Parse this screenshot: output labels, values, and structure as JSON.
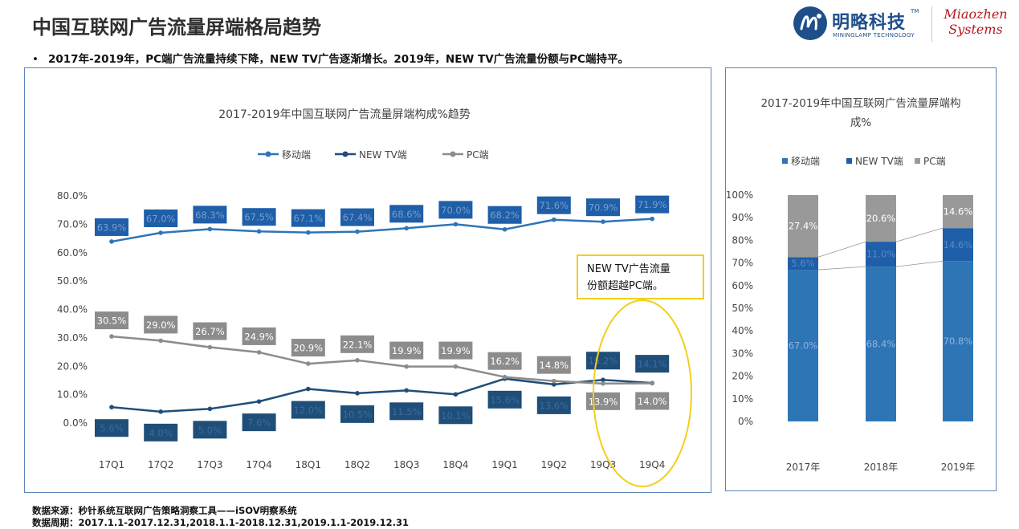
{
  "page": {
    "title": "中国互联网广告流量屏端格局趋势",
    "bullet": "2017年-2019年，PC端广告流量持续下降，NEW TV广告逐渐增长。2019年，NEW TV广告流量份额与PC端持平。",
    "source_line": "数据来源：秒针系统互联网广告策略洞察工具——iSOV明察系统",
    "period_line": "数据周期：2017.1.1-2017.12.31,2018.1.1-2018.12.31,2019.1.1-2019.12.31"
  },
  "logo": {
    "name": "明略科技",
    "tm": "TM",
    "sub": "MININGLAMP TECHNOLOGY",
    "partner_line1": "Miaozhen",
    "partner_line2": "Systems"
  },
  "colors": {
    "mobile": "#2e75b6",
    "newtv": "#1f4e79",
    "pc": "#8c8c8c",
    "stack_mobile": "#2e75b6",
    "stack_newtv": "#1f5ea8",
    "stack_pc": "#999999",
    "highlight": "#f2cf1d",
    "panel_border": "#5c84b8"
  },
  "chart_data": [
    {
      "type": "line",
      "title": "2017-2019年中国互联网广告流量屏端构成%趋势",
      "categories": [
        "17Q1",
        "17Q2",
        "17Q3",
        "17Q4",
        "18Q1",
        "18Q2",
        "18Q3",
        "18Q4",
        "19Q1",
        "19Q2",
        "19Q3",
        "19Q4"
      ],
      "series": [
        {
          "name": "移动端",
          "values": [
            63.9,
            67.0,
            68.3,
            67.5,
            67.1,
            67.4,
            68.6,
            70.0,
            68.2,
            71.6,
            70.9,
            71.9
          ],
          "labels": [
            "63.9%",
            "67.0%",
            "68.3%",
            "67.5%",
            "67.1%",
            "67.4%",
            "68.6%",
            "70.0%",
            "68.2%",
            "71.6%",
            "70.9%",
            "71.9%"
          ]
        },
        {
          "name": "NEW TV端",
          "values": [
            5.6,
            4.0,
            5.0,
            7.6,
            12.0,
            10.5,
            11.5,
            10.1,
            15.6,
            13.6,
            15.2,
            14.1
          ],
          "labels": [
            "5.6%",
            "4.0%",
            "5.0%",
            "7.6%",
            "12.0%",
            "10.5%",
            "11.5%",
            "10.1%",
            "15.6%",
            "13.6%",
            "15.2%",
            "14.1%"
          ]
        },
        {
          "name": "PC端",
          "values": [
            30.5,
            29.0,
            26.7,
            24.9,
            20.9,
            22.1,
            19.9,
            19.9,
            16.2,
            14.8,
            13.9,
            14.0
          ],
          "labels": [
            "30.5%",
            "29.0%",
            "26.7%",
            "24.9%",
            "20.9%",
            "22.1%",
            "19.9%",
            "19.9%",
            "16.2%",
            "14.8%",
            "13.9%",
            "14.0%"
          ]
        }
      ],
      "yticks": [
        "0.0%",
        "10.0%",
        "20.0%",
        "30.0%",
        "40.0%",
        "50.0%",
        "60.0%",
        "70.0%",
        "80.0%"
      ],
      "ylim": [
        0,
        80
      ],
      "legend": "top-center",
      "grid": false,
      "annotation": "NEW TV广告流量份额超越PC端。"
    },
    {
      "type": "bar",
      "stacked": true,
      "title_line1": "2017-2019年中国互联网广告流量屏端构",
      "title_line2": "成%",
      "categories": [
        "2017年",
        "2018年",
        "2019年"
      ],
      "series": [
        {
          "name": "移动端",
          "values": [
            67.0,
            68.4,
            70.8
          ],
          "labels": [
            "67.0%",
            "68.4%",
            "70.8%"
          ]
        },
        {
          "name": "NEW TV端",
          "values": [
            5.6,
            11.0,
            14.6
          ],
          "labels": [
            "5.6%",
            "11.0%",
            "14.6%"
          ]
        },
        {
          "name": "PC端",
          "values": [
            27.4,
            20.6,
            14.6
          ],
          "labels": [
            "27.4%",
            "20.6%",
            "14.6%"
          ]
        }
      ],
      "yticks": [
        "0%",
        "10%",
        "20%",
        "30%",
        "40%",
        "50%",
        "60%",
        "70%",
        "80%",
        "90%",
        "100%"
      ],
      "ylim": [
        0,
        100
      ],
      "legend": "top-center",
      "grid": false
    }
  ]
}
